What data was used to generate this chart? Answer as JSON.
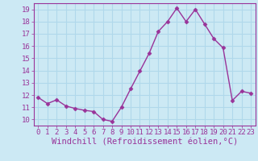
{
  "x": [
    0,
    1,
    2,
    3,
    4,
    5,
    6,
    7,
    8,
    9,
    10,
    11,
    12,
    13,
    14,
    15,
    16,
    17,
    18,
    19,
    20,
    21,
    22,
    23
  ],
  "y": [
    11.8,
    11.3,
    11.6,
    11.1,
    10.9,
    10.75,
    10.65,
    10.0,
    9.85,
    11.0,
    12.5,
    13.95,
    15.4,
    17.2,
    18.0,
    19.1,
    18.0,
    19.0,
    17.8,
    16.6,
    15.85,
    11.55,
    12.3,
    12.15
  ],
  "line_color": "#993399",
  "marker": "D",
  "markersize": 2.5,
  "linewidth": 1.0,
  "xlabel": "Windchill (Refroidissement éolien,°C)",
  "xlim": [
    -0.5,
    23.5
  ],
  "ylim": [
    9.5,
    19.5
  ],
  "yticks": [
    10,
    11,
    12,
    13,
    14,
    15,
    16,
    17,
    18,
    19
  ],
  "xticks": [
    0,
    1,
    2,
    3,
    4,
    5,
    6,
    7,
    8,
    9,
    10,
    11,
    12,
    13,
    14,
    15,
    16,
    17,
    18,
    19,
    20,
    21,
    22,
    23
  ],
  "bg_color": "#cce9f4",
  "grid_color": "#b0d8eb",
  "tick_label_fontsize": 6.5,
  "xlabel_fontsize": 7.5
}
